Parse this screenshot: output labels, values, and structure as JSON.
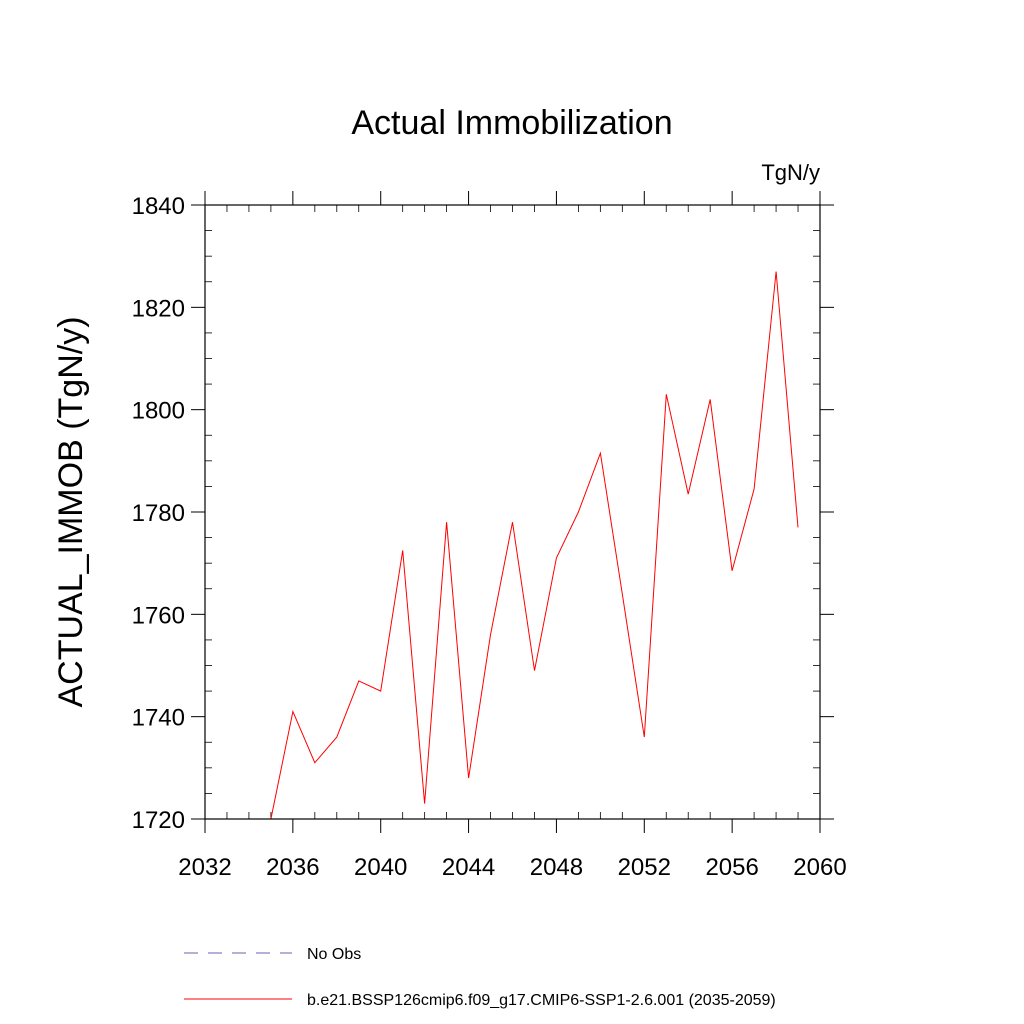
{
  "chart_data": {
    "type": "line",
    "title": "Actual Immobilization",
    "units_label": "TgN/y",
    "ylabel": "ACTUAL_IMMOB  (TgN/y)",
    "xlabel": "",
    "xlim": [
      2032,
      2060
    ],
    "ylim": [
      1720,
      1840
    ],
    "x_ticks": [
      2032,
      2036,
      2040,
      2044,
      2048,
      2052,
      2056,
      2060
    ],
    "y_ticks": [
      1720,
      1740,
      1760,
      1780,
      1800,
      1820,
      1840
    ],
    "x_minor_step": 1,
    "y_minor_step": 5,
    "grid": false,
    "legend_placement": "bottom",
    "series": [
      {
        "name": "No Obs",
        "color": "#6b5fb5",
        "style": "dashed",
        "x": [],
        "values": []
      },
      {
        "name": "b.e21.BSSP126cmip6.f09_g17.CMIP6-SSP1-2.6.001 (2035-2059)",
        "color": "#ff0000",
        "style": "solid",
        "x": [
          2035,
          2036,
          2037,
          2038,
          2039,
          2040,
          2041,
          2042,
          2043,
          2044,
          2045,
          2046,
          2047,
          2048,
          2049,
          2050,
          2051,
          2052,
          2053,
          2054,
          2055,
          2056,
          2057,
          2058,
          2059
        ],
        "values": [
          1720,
          1741,
          1731,
          1736,
          1747,
          1745,
          1772.5,
          1723,
          1778,
          1728,
          1756,
          1778,
          1749,
          1771,
          1780,
          1791.5,
          1764,
          1736,
          1803,
          1783.5,
          1802,
          1768.5,
          1784.5,
          1827,
          1777
        ]
      }
    ]
  }
}
